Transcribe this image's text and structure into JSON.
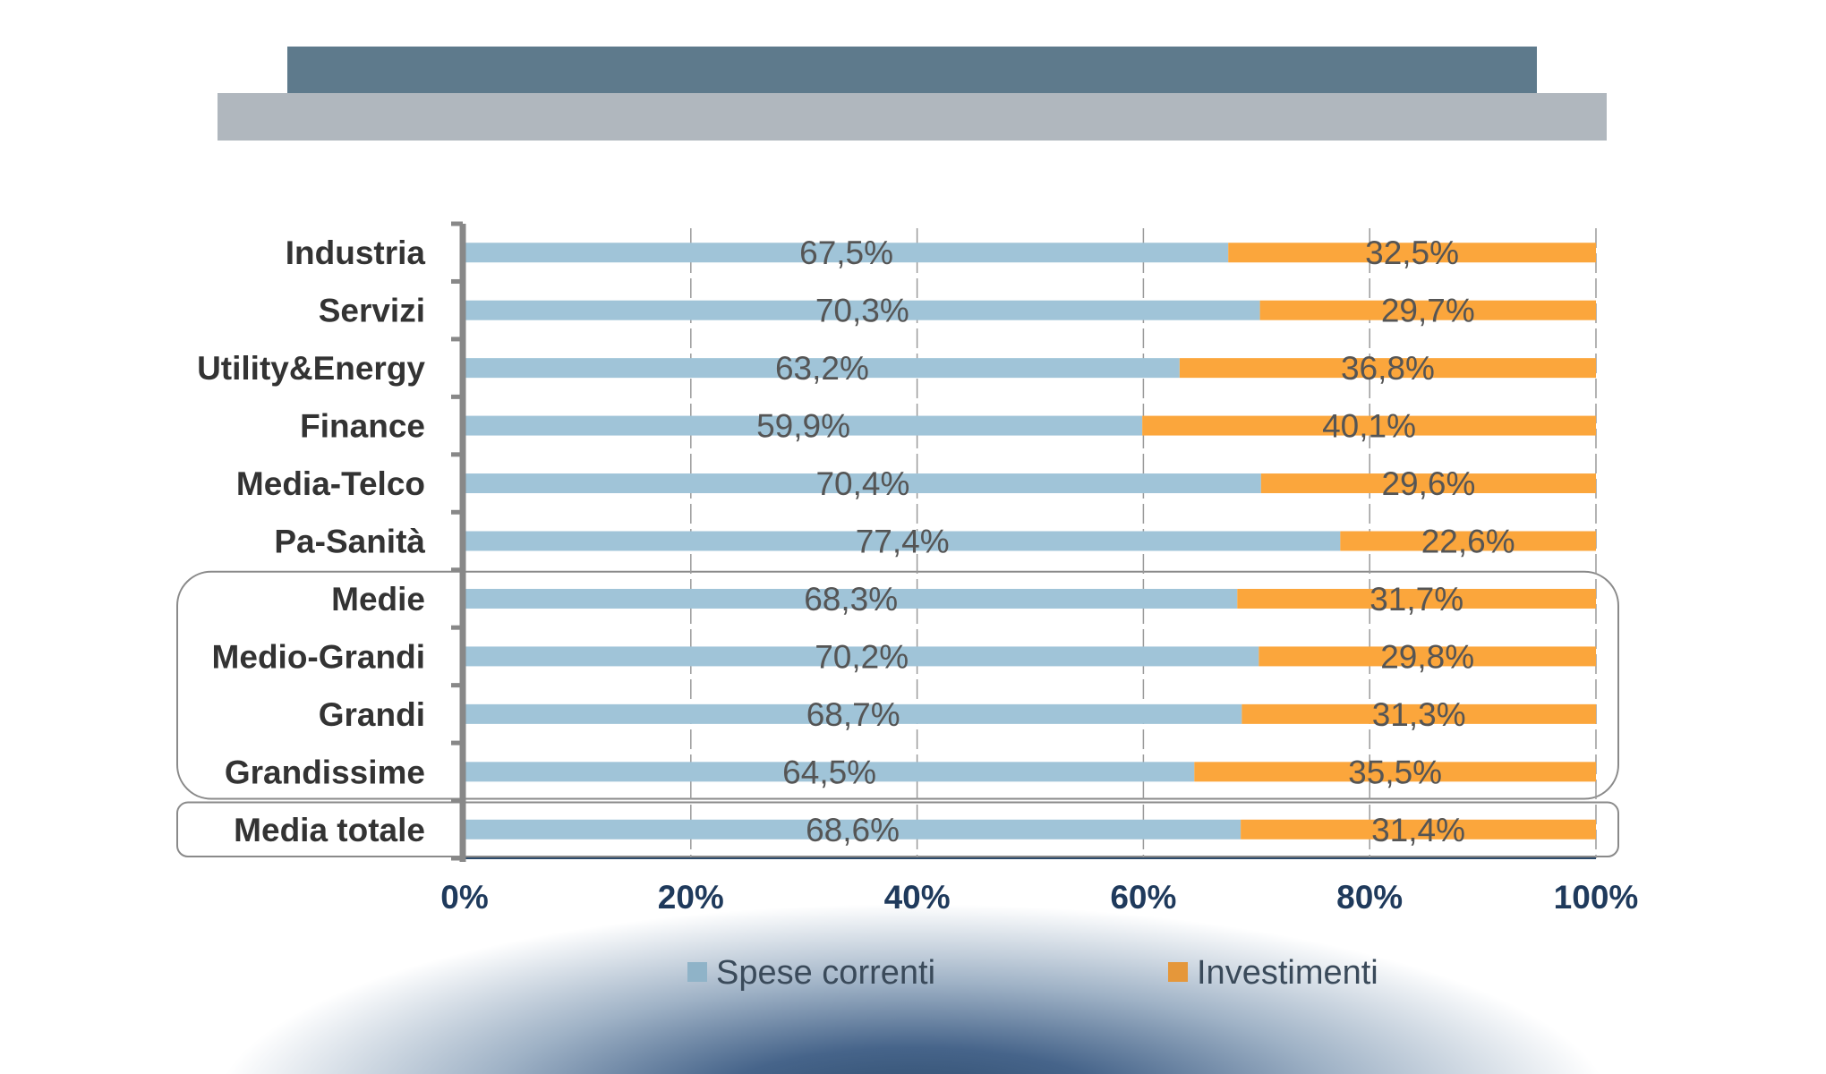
{
  "chart_data": {
    "type": "bar",
    "orientation": "horizontal",
    "stacked": "100%",
    "categories": [
      "Industria",
      "Servizi",
      "Utility&Energy",
      "Finance",
      "Media-Telco",
      "Pa-Sanità",
      "Medie",
      "Medio-Grandi",
      "Grandi",
      "Grandissime",
      "Media totale"
    ],
    "series": [
      {
        "name": "Spese correnti",
        "color": "#a0c4d8",
        "values": [
          67.5,
          70.3,
          63.2,
          59.9,
          70.4,
          77.4,
          68.3,
          70.2,
          68.7,
          64.5,
          68.6
        ],
        "labels": [
          "67,5%",
          "70,3%",
          "63,2%",
          "59,9%",
          "70,4%",
          "77,4%",
          "68,3%",
          "70,2%",
          "68,7%",
          "64,5%",
          "68,6%"
        ]
      },
      {
        "name": "Investimenti",
        "color": "#fba63c",
        "values": [
          32.5,
          29.7,
          36.8,
          40.1,
          29.6,
          22.6,
          31.7,
          29.8,
          31.3,
          35.5,
          31.4
        ],
        "labels": [
          "32,5%",
          "29,7%",
          "36,8%",
          "40,1%",
          "29,6%",
          "22,6%",
          "31,7%",
          "29,8%",
          "31,3%",
          "35,5%",
          "31,4%"
        ]
      }
    ],
    "xlim": [
      0,
      100
    ],
    "xticks": [
      "0%",
      "20%",
      "40%",
      "60%",
      "80%",
      "100%"
    ],
    "grid": "vertical dashed",
    "legend_position": "bottom",
    "grouped_boxes": [
      [
        "Medie",
        "Medio-Grandi",
        "Grandi",
        "Grandissime"
      ],
      [
        "Media totale"
      ]
    ]
  },
  "colors": {
    "header_dark": "#5e7a8c",
    "header_light": "#b0b7be",
    "tick_text": "#1f3a5c",
    "label_text": "#333333",
    "value_text": "#555555"
  }
}
